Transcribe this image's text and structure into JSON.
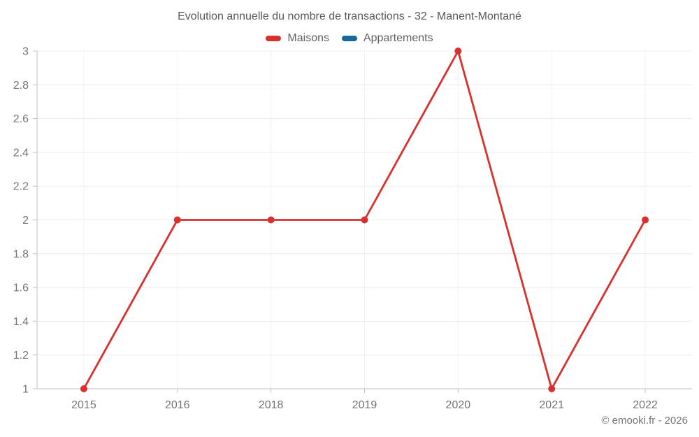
{
  "chart_data": {
    "type": "line",
    "title": "Evolution annuelle du nombre de transactions - 32 - Manent-Montané",
    "categories": [
      "2015",
      "2016",
      "2018",
      "2019",
      "2020",
      "2021",
      "2022"
    ],
    "series": [
      {
        "name": "Maisons",
        "color": "#d8312d",
        "values": [
          1,
          2,
          2,
          2,
          3,
          1,
          2
        ]
      },
      {
        "name": "Appartements",
        "color": "#176a9b",
        "values": []
      }
    ],
    "xlabel": "",
    "ylabel": "",
    "ylim": [
      1,
      3
    ],
    "y_ticks": [
      3,
      2.8,
      2.6,
      2.4,
      2.2,
      2,
      1.8,
      1.6,
      1.4,
      1.2,
      1
    ],
    "grid": true,
    "legend_position": "top",
    "colors": {
      "grid_line": "#ececec",
      "vertical_grid_line": "#f2f2f2",
      "axis_line": "#c2c2c2",
      "tick_label": "#757575",
      "title_text": "#575757",
      "legend_text": "#616161"
    }
  },
  "footer": {
    "credit": "© emooki.fr - 2026"
  }
}
